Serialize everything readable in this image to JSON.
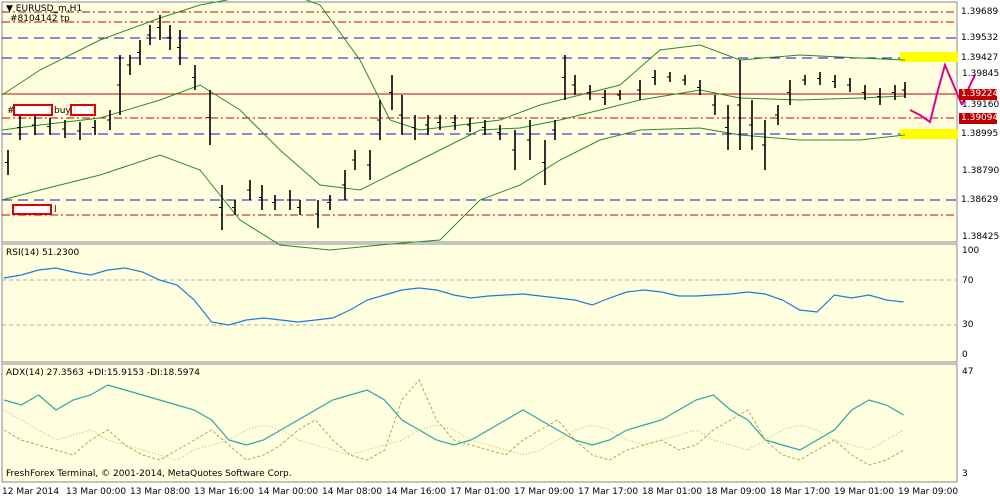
{
  "chart": {
    "symbol_title": "EURUSD_m,H1",
    "ticket": "#8104142 tp",
    "buy_label": "buy",
    "sel_label": "l",
    "hash_label": "#"
  },
  "price_levels": [
    {
      "value": "1.39689",
      "style": "dashdot-red",
      "highlight": false
    },
    {
      "value": "1.39532",
      "style": "dash-blue",
      "highlight": false
    },
    {
      "value": "1.39427",
      "style": "dash-blue",
      "highlight": true
    },
    {
      "value": "1.39224",
      "style": "solid-red",
      "highlight": false,
      "current": true
    },
    {
      "value": "1.39094",
      "style": "dashdot-red",
      "highlight": false,
      "current": true
    },
    {
      "value": "1.38995",
      "style": "dash-blue",
      "highlight": true
    },
    {
      "value": "1.38629",
      "style": "dash-blue",
      "highlight": false
    }
  ],
  "price_axis_labels": [
    "1.39160",
    "1.38790",
    "1.38425",
    "1.39845"
  ],
  "rsi": {
    "label": "RSI(14) 51.2300",
    "levels": [
      "100",
      "70",
      "30",
      "0"
    ]
  },
  "adx": {
    "label": "ADX(14) 27.3563 +DI:15.9153 -DI:18.5974",
    "levels": [
      "47",
      "3"
    ]
  },
  "footer": {
    "copyright": "FreshForex Terminal, © 2001-2014, MetaQuotes Software Corp."
  },
  "time_axis": [
    "12 Mar 2014",
    "13 Mar 00:00",
    "13 Mar 08:00",
    "13 Mar 16:00",
    "14 Mar 00:00",
    "14 Mar 08:00",
    "14 Mar 16:00",
    "17 Mar 01:00",
    "17 Mar 09:00",
    "17 Mar 17:00",
    "18 Mar 01:00",
    "18 Mar 09:00",
    "18 Mar 17:00",
    "19 Mar 01:00",
    "19 Mar 09:00"
  ],
  "colors": {
    "background": "#ffffe0",
    "bollinger": "#2a8a2a",
    "rsi_line": "#1e7bd6",
    "adx_main": "#2aa6a6",
    "adx_di": "#b5a84a",
    "level_blue": "#1010c0",
    "level_red": "#c00000",
    "highlight": "#ffff00",
    "annotation": "#e0008a"
  }
}
